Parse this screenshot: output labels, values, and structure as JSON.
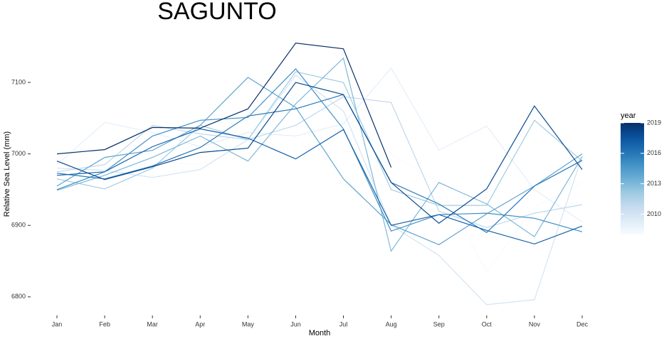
{
  "chart_data": {
    "type": "line",
    "title": "SAGUNTO",
    "x_label": "Month",
    "y_label": "Relative Sea Level (mm)",
    "categories": [
      "Jan",
      "Feb",
      "Mar",
      "Apr",
      "May",
      "Jun",
      "Jul",
      "Aug",
      "Sep",
      "Oct",
      "Nov",
      "Dec"
    ],
    "ylim": [
      6780,
      7160
    ],
    "yticks": [
      6800,
      6900,
      7000,
      7100
    ],
    "legend": {
      "title": "year",
      "range": [
        2008,
        2019
      ],
      "ticks": [
        2010,
        2013,
        2016,
        2019
      ],
      "colors": [
        "#f7fbff",
        "#deebf7",
        "#c6dbef",
        "#9ecae1",
        "#6baed6",
        "#4292c6",
        "#2171b5",
        "#08519c",
        "#08306b"
      ]
    },
    "series": [
      {
        "year": 2008,
        "values": [
          6960,
          6970,
          6990,
          6985,
          7010,
          7085,
          7050,
          7000,
          6960,
          6835,
          6925,
          6960
        ]
      },
      {
        "year": 2009,
        "values": [
          6985,
          7044,
          7030,
          7010,
          7030,
          7025,
          7042,
          7120,
          7005,
          7039,
          6950,
          6905
        ]
      },
      {
        "year": 2010,
        "values": [
          6980,
          6977,
          6967,
          6978,
          7020,
          7110,
          7060,
          6900,
          6858,
          6789,
          6796,
          6997
        ]
      },
      {
        "year": 2011,
        "values": [
          6975,
          6985,
          7040,
          7028,
          7020,
          7040,
          7080,
          7072,
          6920,
          6897,
          6917,
          6929
        ]
      },
      {
        "year": 2012,
        "values": [
          6965,
          6951,
          6980,
          7040,
          7020,
          7115,
          7100,
          6950,
          6928,
          6928,
          7047,
          6990
        ]
      },
      {
        "year": 2013,
        "values": [
          6949,
          6970,
          6995,
          7025,
          6990,
          7070,
          7134,
          6864,
          6960,
          6930,
          6884,
          6996
        ]
      },
      {
        "year": 2014,
        "values": [
          6955,
          6995,
          7005,
          7040,
          7107,
          7065,
          6965,
          6901,
          6873,
          6916,
          6955,
          7000
        ]
      },
      {
        "year": 2015,
        "values": [
          6950,
          6975,
          7025,
          7047,
          7051,
          7119,
          7035,
          6892,
          6915,
          6917,
          6910,
          6891
        ]
      },
      {
        "year": 2016,
        "values": [
          6973,
          6965,
          6983,
          7009,
          7053,
          7063,
          7083,
          6960,
          6930,
          6890,
          6955,
          6991
        ]
      },
      {
        "year": 2017,
        "values": [
          6970,
          6975,
          7010,
          7035,
          7022,
          6993,
          7034,
          6900,
          6915,
          6893,
          6874,
          6899
        ]
      },
      {
        "year": 2018,
        "values": [
          6990,
          6964,
          6982,
          7002,
          7008,
          7100,
          7083,
          6960,
          6903,
          6951,
          7067,
          6978
        ]
      },
      {
        "year": 2019,
        "values": [
          7000,
          7006,
          7037,
          7036,
          7063,
          7155,
          7147,
          6981,
          null,
          null,
          null,
          null
        ]
      }
    ]
  }
}
